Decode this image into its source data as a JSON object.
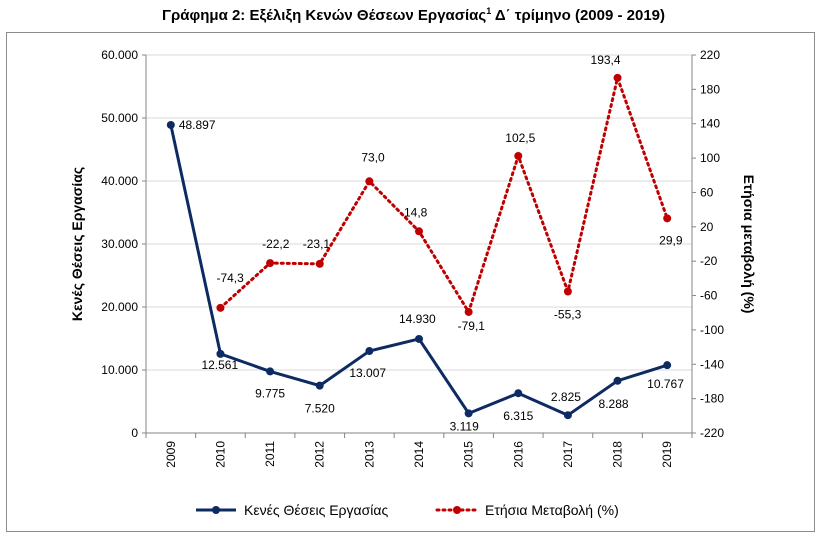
{
  "title": {
    "main": "Γράφημα 2: Εξέλιξη Κενών Θέσεων Εργασίας",
    "sup": "1",
    "tail": " Δ΄ τρίμηνο (2009 - 2019)"
  },
  "colors": {
    "primary": "#0d2a63",
    "secondary": "#c00000",
    "grid": "#d9d9d9",
    "axis": "#868686"
  },
  "chart_data": {
    "type": "line",
    "title": "Γράφημα 2: Εξέλιξη Κενών Θέσεων Εργασίας1 Δ΄ τρίμηνο (2009 - 2019)",
    "x": [
      "2009",
      "2010",
      "2011",
      "2012",
      "2013",
      "2014",
      "2015",
      "2016",
      "2017",
      "2018",
      "2019"
    ],
    "ylabel": "Κενές Θέσεις Εργασίας",
    "y2label": "Ετήσια μεταβολή (%)",
    "ylim": [
      0,
      60000
    ],
    "y2lim": [
      -220,
      220
    ],
    "yticks": [
      "0",
      "10.000",
      "20.000",
      "30.000",
      "40.000",
      "50.000",
      "60.000"
    ],
    "y2ticks": [
      "-220",
      "-180",
      "-140",
      "-100",
      "-60",
      "-20",
      "20",
      "60",
      "100",
      "140",
      "180",
      "220"
    ],
    "grid": true,
    "legend_position": "bottom",
    "series": [
      {
        "name": "Κενές Θέσεις Εργασίας",
        "axis": "left",
        "style": "solid",
        "values": [
          48897,
          12561,
          9775,
          7520,
          13007,
          14930,
          3119,
          6315,
          2825,
          8288,
          10767
        ],
        "labels": [
          "48.897",
          "12.561",
          "9.775",
          "7.520",
          "13.007",
          "14.930",
          "3.119",
          "6.315",
          "2.825",
          "8.288",
          "10.767"
        ]
      },
      {
        "name": "Ετήσια Μεταβολή (%)",
        "axis": "right",
        "style": "dotted",
        "values": [
          null,
          -74.3,
          -22.2,
          -23.1,
          73.0,
          14.8,
          -79.1,
          102.5,
          -55.3,
          193.4,
          29.9
        ],
        "labels": [
          "",
          "-74,3",
          "-22,2",
          "-23,1",
          "73,0",
          "14,8",
          "-79,1",
          "102,5",
          "-55,3",
          "193,4",
          "29,9"
        ]
      }
    ]
  }
}
